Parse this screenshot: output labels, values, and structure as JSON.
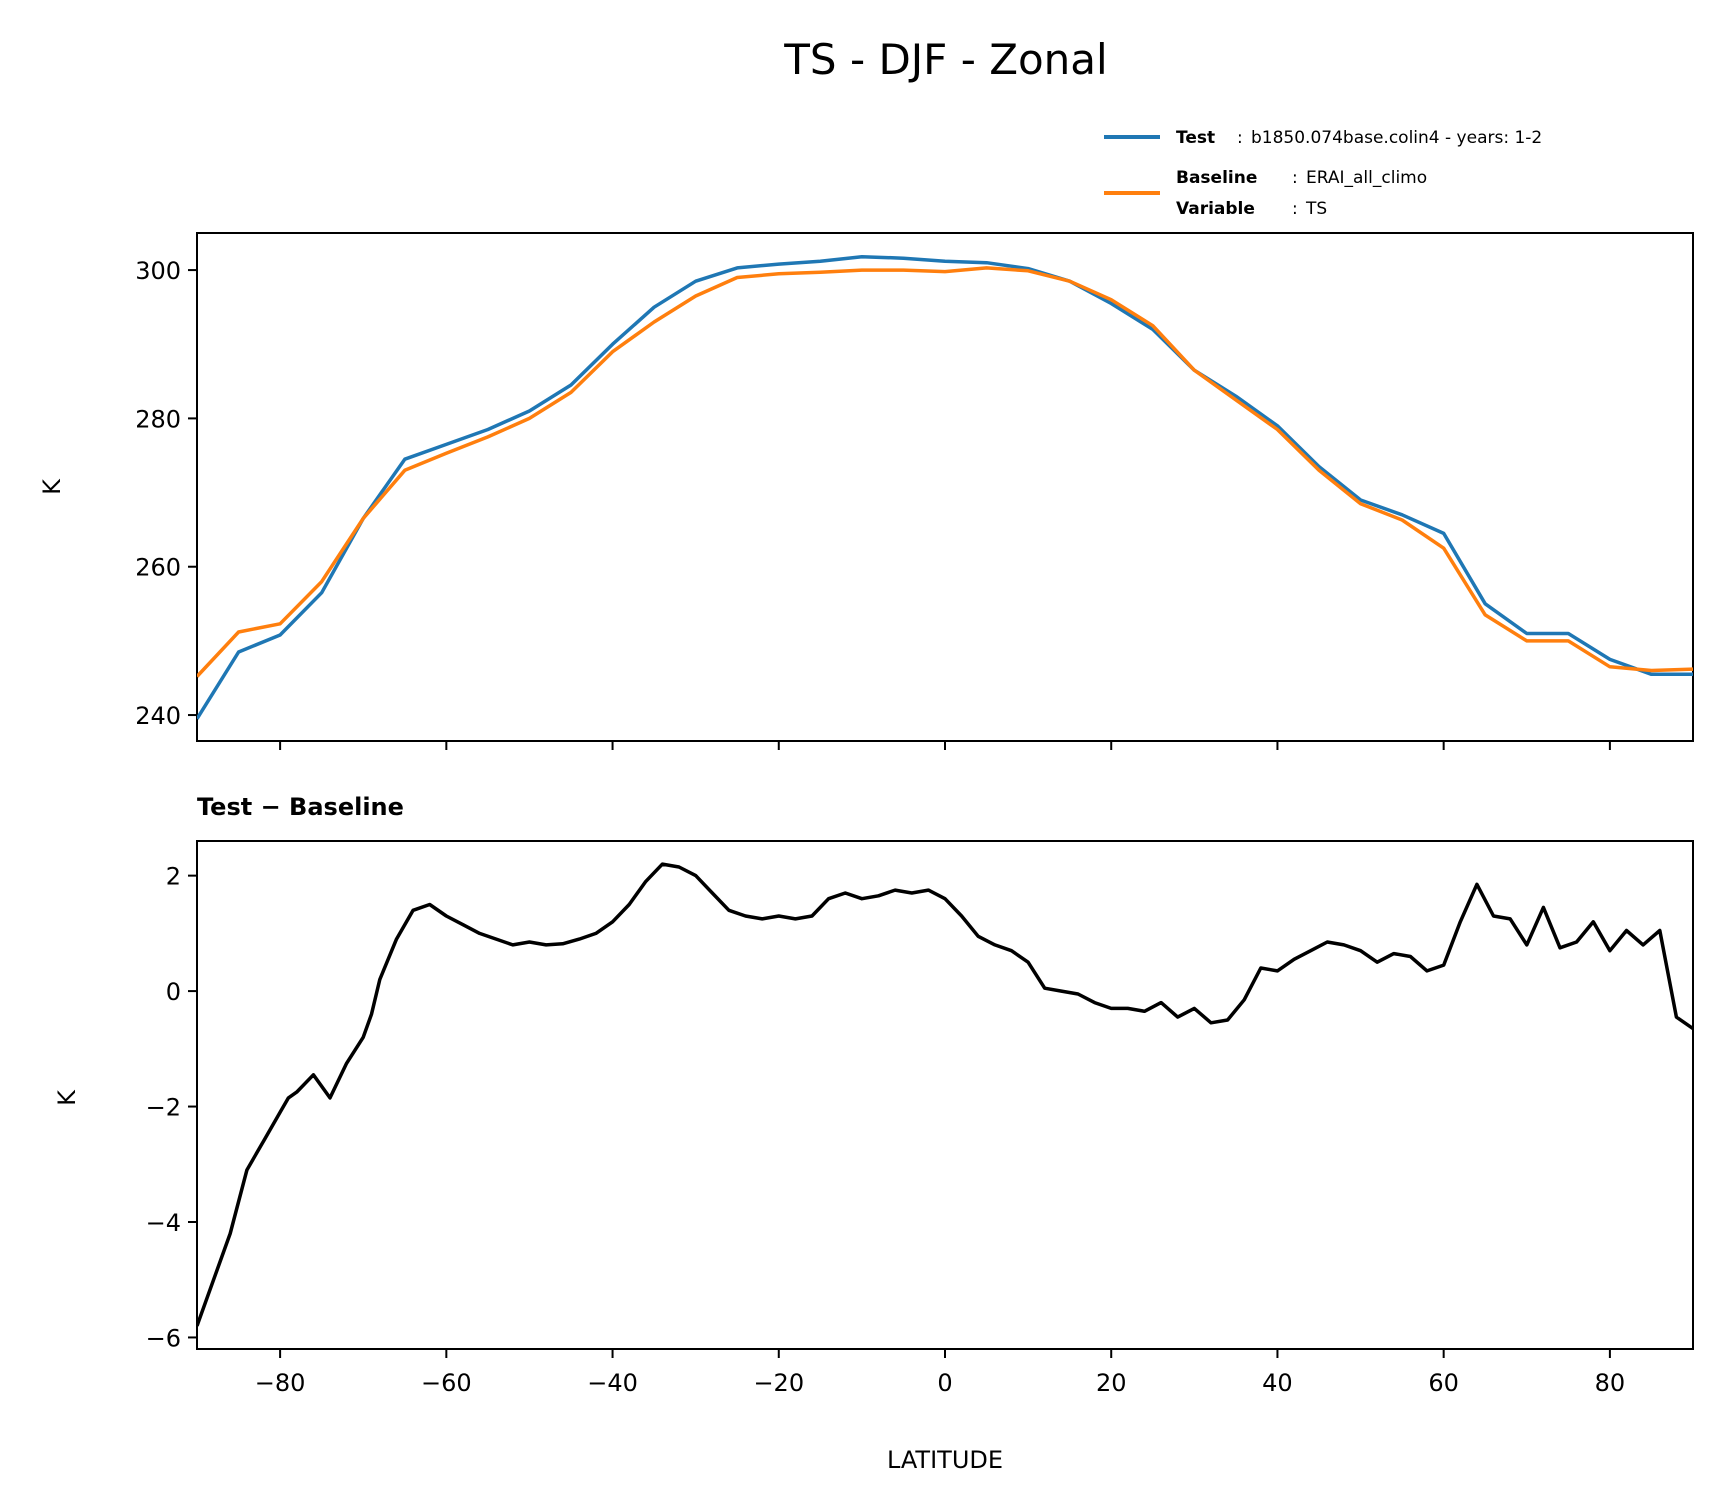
{
  "figure": {
    "title": "TS - DJF - Zonal",
    "legend": {
      "test_key": "Test",
      "test_value": "b1850.074base.colin4 - years: 1-2",
      "baseline_key": "Baseline",
      "baseline_value": "ERAI_all_climo",
      "variable_key": "Variable",
      "variable_value": "TS",
      "separator": ":"
    },
    "bottom_subtitle": "Test − Baseline"
  },
  "colors": {
    "test": "#1f77b4",
    "baseline": "#ff7f0e",
    "diff": "#000000"
  },
  "chart_data": [
    {
      "type": "line",
      "title": "TS - DJF - Zonal",
      "xlabel": "",
      "ylabel": "K",
      "xlim": [
        -90,
        90
      ],
      "ylim": [
        236.5,
        305
      ],
      "xticks": [
        -80,
        -60,
        -40,
        -20,
        0,
        20,
        40,
        60,
        80
      ],
      "yticks": [
        240,
        260,
        280,
        300
      ],
      "ytick_labels": [
        "240",
        "260",
        "280",
        "300"
      ],
      "x": [
        -90,
        -85,
        -80,
        -75,
        -70,
        -65,
        -60,
        -55,
        -50,
        -45,
        -40,
        -35,
        -30,
        -25,
        -20,
        -15,
        -10,
        -5,
        0,
        5,
        10,
        15,
        20,
        25,
        30,
        35,
        40,
        45,
        50,
        55,
        60,
        65,
        70,
        75,
        80,
        85,
        90
      ],
      "series": [
        {
          "name": "Test",
          "color_key": "test",
          "values": [
            239.5,
            248.5,
            250.8,
            256.5,
            266.5,
            274.5,
            276.5,
            278.5,
            281.0,
            284.5,
            290.0,
            295.0,
            298.5,
            300.3,
            300.8,
            301.2,
            301.8,
            301.6,
            301.2,
            301.0,
            300.2,
            298.5,
            295.5,
            292.0,
            286.5,
            283.0,
            279.0,
            273.5,
            269.0,
            267.0,
            264.5,
            255.0,
            251.0,
            251.0,
            247.5,
            245.5,
            245.5
          ]
        },
        {
          "name": "Baseline",
          "color_key": "baseline",
          "values": [
            245.2,
            251.2,
            252.3,
            258.0,
            266.5,
            273.0,
            275.3,
            277.5,
            280.0,
            283.5,
            289.0,
            293.0,
            296.5,
            299.0,
            299.5,
            299.7,
            300.0,
            300.0,
            299.8,
            300.3,
            299.9,
            298.5,
            296.0,
            292.5,
            286.5,
            282.5,
            278.5,
            273.0,
            268.5,
            266.3,
            262.5,
            253.5,
            250.0,
            250.0,
            246.5,
            246.0,
            246.2
          ]
        }
      ]
    },
    {
      "type": "line",
      "title": "Test − Baseline",
      "xlabel": "LATITUDE",
      "ylabel": "K",
      "xlim": [
        -90,
        90
      ],
      "ylim": [
        -6.2,
        2.6
      ],
      "xticks": [
        -80,
        -60,
        -40,
        -20,
        0,
        20,
        40,
        60,
        80
      ],
      "xtick_labels": [
        "−80",
        "−60",
        "−40",
        "−20",
        "0",
        "20",
        "40",
        "60",
        "80"
      ],
      "yticks": [
        -6,
        -4,
        -2,
        0,
        2
      ],
      "ytick_labels": [
        "−6",
        "−4",
        "−2",
        "0",
        "2"
      ],
      "x": [
        -90,
        -88,
        -86,
        -84,
        -82,
        -80,
        -79,
        -78,
        -76,
        -74,
        -72,
        -70,
        -69,
        -68,
        -66,
        -64,
        -62,
        -60,
        -58,
        -56,
        -54,
        -52,
        -50,
        -48,
        -46,
        -44,
        -42,
        -40,
        -38,
        -36,
        -34,
        -32,
        -30,
        -28,
        -26,
        -24,
        -22,
        -20,
        -18,
        -16,
        -14,
        -12,
        -10,
        -8,
        -6,
        -4,
        -2,
        0,
        2,
        4,
        6,
        8,
        10,
        12,
        14,
        16,
        18,
        20,
        22,
        24,
        26,
        28,
        30,
        32,
        34,
        36,
        38,
        40,
        42,
        44,
        46,
        48,
        50,
        52,
        54,
        56,
        58,
        60,
        62,
        64,
        66,
        68,
        70,
        72,
        74,
        76,
        78,
        80,
        82,
        84,
        86,
        88,
        90
      ],
      "series": [
        {
          "name": "Test − Baseline",
          "color_key": "diff",
          "values": [
            -5.8,
            -5.0,
            -4.2,
            -3.1,
            -2.6,
            -2.1,
            -1.85,
            -1.75,
            -1.45,
            -1.85,
            -1.25,
            -0.8,
            -0.4,
            0.2,
            0.9,
            1.4,
            1.5,
            1.3,
            1.15,
            1.0,
            0.9,
            0.8,
            0.85,
            0.8,
            0.82,
            0.9,
            1.0,
            1.2,
            1.5,
            1.9,
            2.2,
            2.15,
            2.0,
            1.7,
            1.4,
            1.3,
            1.25,
            1.3,
            1.25,
            1.3,
            1.6,
            1.7,
            1.6,
            1.65,
            1.75,
            1.7,
            1.75,
            1.6,
            1.3,
            0.95,
            0.8,
            0.7,
            0.5,
            0.05,
            0.0,
            -0.05,
            -0.2,
            -0.3,
            -0.3,
            -0.35,
            -0.2,
            -0.45,
            -0.3,
            -0.55,
            -0.5,
            -0.15,
            0.4,
            0.35,
            0.55,
            0.7,
            0.85,
            0.8,
            0.7,
            0.5,
            0.65,
            0.6,
            0.35,
            0.45,
            1.2,
            1.85,
            1.3,
            1.25,
            0.8,
            1.45,
            0.75,
            0.85,
            1.2,
            0.7,
            1.05,
            0.8,
            1.05,
            -0.45,
            -0.65
          ]
        }
      ]
    }
  ]
}
